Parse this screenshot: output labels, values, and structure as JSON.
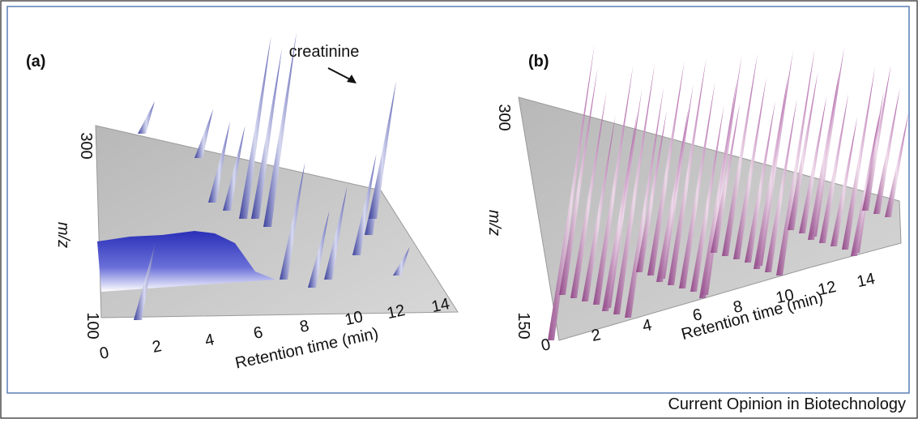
{
  "panels": [
    {
      "label": "(a)",
      "annotation": "creatinine",
      "x_axis_title": "Retention time (min)",
      "x_ticks": [
        0,
        2,
        4,
        6,
        8,
        10,
        12,
        14
      ],
      "y_axis_title": "m/z",
      "y_ticks": [
        300,
        100
      ]
    },
    {
      "label": "(b)",
      "x_axis_title": "Retention time (min)",
      "x_ticks": [
        0,
        2,
        4,
        6,
        8,
        10,
        12,
        14
      ],
      "y_axis_title": "m/z",
      "y_ticks": [
        300,
        150
      ]
    }
  ],
  "footer": "Current Opinion in Biotechnology"
}
